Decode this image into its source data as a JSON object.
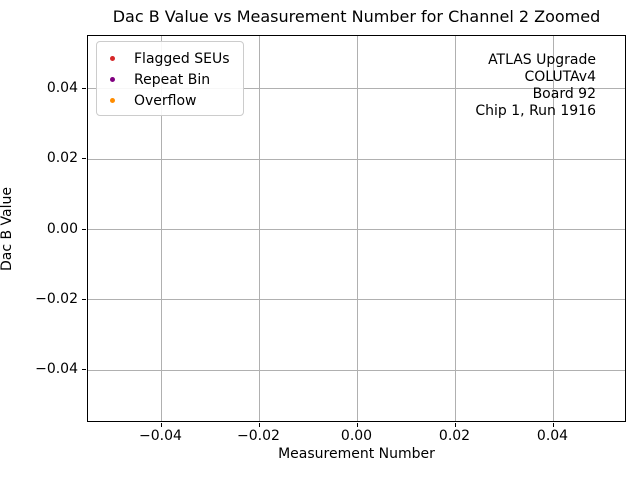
{
  "chart_data": {
    "type": "scatter",
    "title": "Dac B Value vs Measurement Number for Channel 2 Zoomed",
    "xlabel": "Measurement Number",
    "ylabel": "Dac B Value",
    "xlim": [
      -0.055,
      0.055
    ],
    "ylim": [
      -0.055,
      0.055
    ],
    "xticks": [
      -0.04,
      -0.02,
      0.0,
      0.02,
      0.04
    ],
    "yticks": [
      -0.04,
      -0.02,
      0.0,
      0.02,
      0.04
    ],
    "grid": true,
    "legend": {
      "position": "upper-left",
      "entries": [
        {
          "label": "Flagged SEUs",
          "color": "#d62728",
          "marker": "dot"
        },
        {
          "label": "Repeat Bin",
          "color": "#800080",
          "marker": "dot"
        },
        {
          "label": "Overflow",
          "color": "#ff8c00",
          "marker": "dot"
        }
      ]
    },
    "series": [
      {
        "name": "Flagged SEUs",
        "x": [],
        "y": []
      },
      {
        "name": "Repeat Bin",
        "x": [],
        "y": []
      },
      {
        "name": "Overflow",
        "x": [],
        "y": []
      }
    ],
    "annotation": {
      "align": "right",
      "lines": [
        "ATLAS Upgrade",
        "COLUTAv4",
        "Board 92",
        "Chip 1, Run 1916"
      ]
    }
  },
  "colors": {
    "background": "#ffffff",
    "grid": "#b0b0b0",
    "spine": "#000000",
    "text": "#000000"
  }
}
